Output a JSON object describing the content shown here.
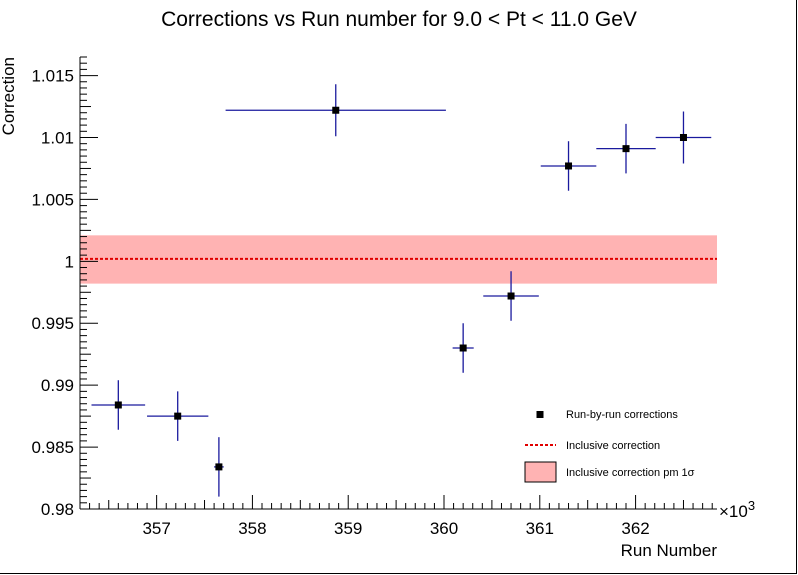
{
  "chart_data": {
    "type": "scatter",
    "title": "Corrections vs Run number for 9.0 < Pt < 11.0 GeV",
    "xlabel": "Run Number",
    "ylabel": "Correction",
    "x_multiplier_label": "×10",
    "x_multiplier_exponent": "3",
    "xlim": [
      356.2,
      362.85
    ],
    "ylim": [
      0.98,
      1.0165
    ],
    "x_ticks": [
      357,
      358,
      359,
      360,
      361,
      362
    ],
    "x_tick_labels": [
      "357",
      "358",
      "359",
      "360",
      "361",
      "362"
    ],
    "y_ticks": [
      0.98,
      0.985,
      0.99,
      0.995,
      1.0,
      1.005,
      1.01,
      1.015
    ],
    "y_tick_labels": [
      "0.98",
      "0.985",
      "0.99",
      "0.995",
      "1",
      "1.005",
      "1.01",
      "1.015"
    ],
    "series": [
      {
        "name": "Run-by-run corrections",
        "points": [
          {
            "x": 356.6,
            "y": 0.9884,
            "xerr": 0.28,
            "yerr": 0.002
          },
          {
            "x": 357.22,
            "y": 0.9875,
            "xerr": 0.32,
            "yerr": 0.002
          },
          {
            "x": 357.65,
            "y": 0.9834,
            "xerr": 0.05,
            "yerr": 0.0024
          },
          {
            "x": 358.87,
            "y": 1.0122,
            "xerr": 1.15,
            "yerr": 0.0021
          },
          {
            "x": 360.2,
            "y": 0.993,
            "xerr": 0.11,
            "yerr": 0.002
          },
          {
            "x": 360.7,
            "y": 0.9972,
            "xerr": 0.29,
            "yerr": 0.002
          },
          {
            "x": 361.3,
            "y": 1.0077,
            "xerr": 0.29,
            "yerr": 0.002
          },
          {
            "x": 361.9,
            "y": 1.0091,
            "xerr": 0.31,
            "yerr": 0.002
          },
          {
            "x": 362.5,
            "y": 1.01,
            "xerr": 0.29,
            "yerr": 0.0021
          }
        ]
      }
    ],
    "inclusive": {
      "name": "Inclusive correction",
      "value": 1.0002,
      "band_name": "Inclusive correction pm 1σ",
      "band_low": 0.9982,
      "band_high": 1.0021
    },
    "legend_position": "bottom-right",
    "grid": false,
    "colors": {
      "marker": "#000000",
      "error_bar": "#1a1a9e",
      "inclusive_line": "#e00000",
      "band": "#ffb3b3"
    }
  }
}
